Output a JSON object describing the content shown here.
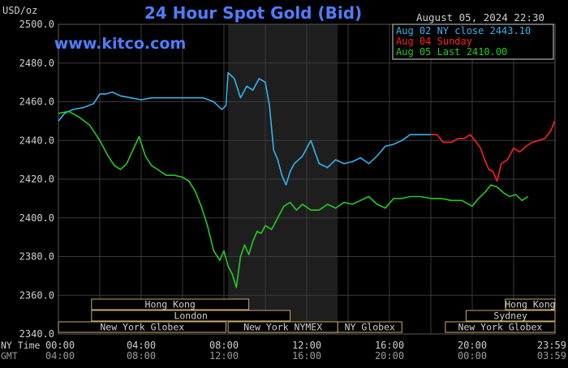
{
  "header": {
    "title": "24 Hour Spot Gold (Bid)",
    "unit": "USD/oz",
    "datetime": "August 05, 2024 22:30",
    "watermark": "www.kitco.com"
  },
  "timezone_labels": {
    "ny_time": "NY Time",
    "gmt": "GMT"
  },
  "sessions": [
    {
      "label": "Hong Kong",
      "row": 0
    },
    {
      "label": "Hong Kong",
      "row": 0
    },
    {
      "label": "London",
      "row": 1
    },
    {
      "label": "Sydney",
      "row": 1
    },
    {
      "label": "New York Globex",
      "row": 2
    },
    {
      "label": "New York NYMEX",
      "row": 2
    },
    {
      "label": "NY Globex",
      "row": 2
    },
    {
      "label": "New York Globex",
      "row": 2
    }
  ],
  "colors": {
    "background": "#000000",
    "title": "#4f7dff",
    "grid": "#3a3a3a",
    "band": "#1e1e1e",
    "axis_text": "#cfcfcf",
    "session_box": "#c8a96a",
    "aug02": "#34b4f0",
    "aug04": "#ff2020",
    "aug05": "#22cc22"
  },
  "chart_data": {
    "type": "line",
    "title": "24 Hour Spot Gold (Bid)",
    "ylabel": "USD/oz",
    "xlabel": "",
    "ylim": [
      2340,
      2500
    ],
    "xlim": [
      0,
      24
    ],
    "yticks": [
      "2500.0",
      "2480.0",
      "2460.0",
      "2440.0",
      "2420.0",
      "2400.0",
      "2380.0",
      "2360.0",
      "2340.0"
    ],
    "xticks_ny": [
      "00:00",
      "04:00",
      "08:00",
      "12:00",
      "16:00",
      "20:00",
      "23:59"
    ],
    "xticks_gmt": [
      "04:00",
      "08:00",
      "12:00",
      "16:00",
      "20:00",
      "00:00",
      "03:59"
    ],
    "legend_position": "top-right",
    "series": [
      {
        "name": "Aug 02 NY close 2443.10",
        "x": [
          0,
          0.3,
          0.7,
          1.2,
          1.7,
          2.0,
          2.3,
          2.6,
          3.0,
          3.5,
          4.0,
          4.5,
          5.0,
          5.5,
          6.0,
          6.5,
          7.0,
          7.5,
          7.9,
          8.1,
          8.2,
          8.5,
          8.8,
          9.1,
          9.4,
          9.7,
          10.0,
          10.2,
          10.4,
          10.6,
          10.8,
          11.0,
          11.2,
          11.4,
          11.8,
          12.2,
          12.6,
          13.0,
          13.4,
          13.8,
          14.2,
          14.6,
          15.0,
          15.4,
          15.8,
          16.2,
          16.6,
          17.0,
          17.5,
          18.0
        ],
        "y": [
          2450,
          2454,
          2456,
          2457,
          2459,
          2464,
          2464,
          2465,
          2463,
          2462,
          2461,
          2462,
          2462,
          2462,
          2462,
          2462,
          2462,
          2460,
          2456,
          2458,
          2475,
          2472,
          2462,
          2468,
          2466,
          2472,
          2470,
          2458,
          2435,
          2430,
          2422,
          2417,
          2424,
          2428,
          2432,
          2440,
          2428,
          2426,
          2430,
          2428,
          2429,
          2431,
          2428,
          2432,
          2437,
          2438,
          2440,
          2443,
          2443,
          2443
        ]
      },
      {
        "name": "Aug 04 Sunday",
        "x": [
          18.0,
          18.3,
          18.6,
          19.0,
          19.3,
          19.6,
          19.9,
          20.2,
          20.4,
          20.6,
          20.8,
          21.0,
          21.2,
          21.4,
          21.7,
          22.0,
          22.3,
          22.6,
          22.9,
          23.2,
          23.5,
          23.8,
          23.98
        ],
        "y": [
          2443,
          2443,
          2439,
          2439,
          2441,
          2441,
          2443,
          2439,
          2436,
          2430,
          2425,
          2424,
          2419,
          2428,
          2430,
          2436,
          2434,
          2437,
          2439,
          2440,
          2441,
          2445,
          2450
        ]
      },
      {
        "name": "Aug 05 Last 2410.00",
        "x": [
          0,
          0.5,
          1.0,
          1.5,
          2.0,
          2.4,
          2.7,
          3.0,
          3.3,
          3.6,
          3.9,
          4.2,
          4.5,
          4.8,
          5.2,
          5.6,
          6.0,
          6.3,
          6.6,
          6.9,
          7.2,
          7.5,
          7.8,
          8.0,
          8.2,
          8.4,
          8.6,
          8.8,
          9.0,
          9.2,
          9.4,
          9.6,
          9.8,
          10.0,
          10.3,
          10.6,
          10.9,
          11.2,
          11.5,
          11.8,
          12.2,
          12.6,
          13.0,
          13.4,
          13.8,
          14.2,
          14.6,
          15.0,
          15.4,
          15.8,
          16.2,
          16.6,
          17.0,
          17.5,
          18.0,
          18.5,
          19.0,
          19.5,
          20.0,
          20.3,
          20.6,
          20.9,
          21.2,
          21.5,
          21.8,
          22.1,
          22.4,
          22.7
        ],
        "y": [
          2454,
          2455,
          2452,
          2448,
          2440,
          2432,
          2427,
          2425,
          2428,
          2435,
          2442,
          2432,
          2427,
          2425,
          2422,
          2422,
          2421,
          2419,
          2414,
          2406,
          2396,
          2383,
          2378,
          2383,
          2375,
          2371,
          2364,
          2380,
          2386,
          2381,
          2388,
          2393,
          2392,
          2396,
          2394,
          2400,
          2406,
          2408,
          2404,
          2407,
          2404,
          2404,
          2407,
          2405,
          2408,
          2407,
          2409,
          2411,
          2407,
          2405,
          2410,
          2410,
          2411,
          2411,
          2410,
          2410,
          2409,
          2409,
          2406,
          2410,
          2413,
          2417,
          2416,
          2413,
          2411,
          2412,
          2409,
          2411
        ]
      }
    ]
  }
}
